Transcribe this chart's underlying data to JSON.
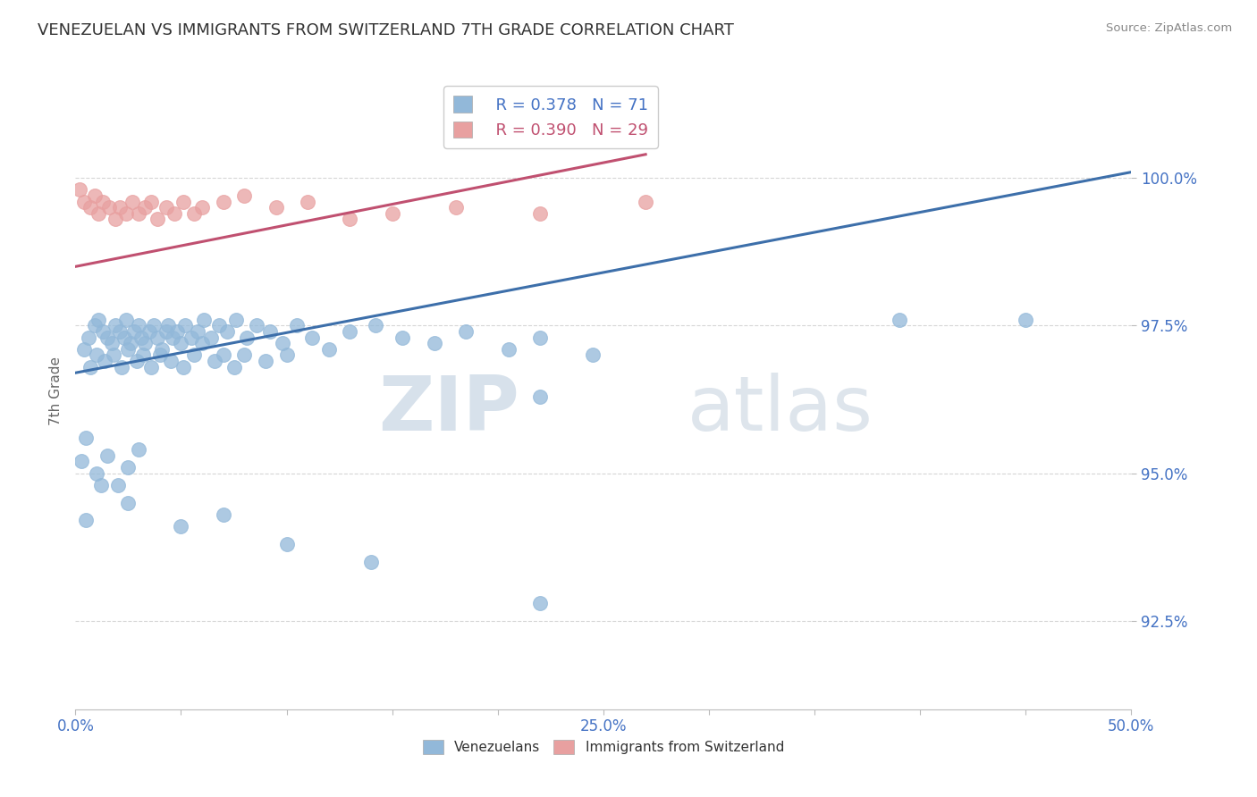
{
  "title": "VENEZUELAN VS IMMIGRANTS FROM SWITZERLAND 7TH GRADE CORRELATION CHART",
  "source": "Source: ZipAtlas.com",
  "ylabel": "7th Grade",
  "xlim": [
    0.0,
    50.0
  ],
  "ylim": [
    91.0,
    101.8
  ],
  "yticks": [
    92.5,
    95.0,
    97.5,
    100.0
  ],
  "ytick_labels": [
    "92.5%",
    "95.0%",
    "97.5%",
    "100.0%"
  ],
  "xticks": [
    0.0,
    5.0,
    10.0,
    15.0,
    20.0,
    25.0,
    30.0,
    35.0,
    40.0,
    45.0,
    50.0
  ],
  "xtick_labels": [
    "0.0%",
    "",
    "",
    "",
    "",
    "25.0%",
    "",
    "",
    "",
    "",
    "50.0%"
  ],
  "blue_r": 0.378,
  "blue_n": 71,
  "pink_r": 0.39,
  "pink_n": 29,
  "blue_color": "#92b8d9",
  "pink_color": "#e8a0a0",
  "blue_line_color": "#3d6faa",
  "pink_line_color": "#c05070",
  "watermark_zip": "ZIP",
  "watermark_atlas": "atlas",
  "blue_scatter_x": [
    0.4,
    0.6,
    0.9,
    1.1,
    1.3,
    1.5,
    1.7,
    1.9,
    2.1,
    2.3,
    2.4,
    2.6,
    2.8,
    3.0,
    3.1,
    3.3,
    3.5,
    3.7,
    3.9,
    4.1,
    4.3,
    4.4,
    4.6,
    4.8,
    5.0,
    5.2,
    5.5,
    5.8,
    6.1,
    6.4,
    6.8,
    7.2,
    7.6,
    8.1,
    8.6,
    9.2,
    9.8,
    10.5,
    11.2,
    12.0,
    13.0,
    14.2,
    15.5,
    17.0,
    18.5,
    20.5,
    22.0,
    24.5,
    0.7,
    1.0,
    1.4,
    1.8,
    2.2,
    2.5,
    2.9,
    3.2,
    3.6,
    4.0,
    4.5,
    5.1,
    5.6,
    6.0,
    6.6,
    7.0,
    7.5,
    8.0,
    9.0,
    10.0,
    22.0,
    39.0,
    45.0
  ],
  "blue_scatter_y": [
    97.1,
    97.3,
    97.5,
    97.6,
    97.4,
    97.3,
    97.2,
    97.5,
    97.4,
    97.3,
    97.6,
    97.2,
    97.4,
    97.5,
    97.3,
    97.2,
    97.4,
    97.5,
    97.3,
    97.1,
    97.4,
    97.5,
    97.3,
    97.4,
    97.2,
    97.5,
    97.3,
    97.4,
    97.6,
    97.3,
    97.5,
    97.4,
    97.6,
    97.3,
    97.5,
    97.4,
    97.2,
    97.5,
    97.3,
    97.1,
    97.4,
    97.5,
    97.3,
    97.2,
    97.4,
    97.1,
    97.3,
    97.0,
    96.8,
    97.0,
    96.9,
    97.0,
    96.8,
    97.1,
    96.9,
    97.0,
    96.8,
    97.0,
    96.9,
    96.8,
    97.0,
    97.2,
    96.9,
    97.0,
    96.8,
    97.0,
    96.9,
    97.0,
    96.3,
    97.6,
    97.6
  ],
  "pink_scatter_x": [
    0.2,
    0.4,
    0.7,
    0.9,
    1.1,
    1.3,
    1.6,
    1.9,
    2.1,
    2.4,
    2.7,
    3.0,
    3.3,
    3.6,
    3.9,
    4.3,
    4.7,
    5.1,
    5.6,
    6.0,
    7.0,
    8.0,
    9.5,
    11.0,
    13.0,
    15.0,
    18.0,
    22.0,
    27.0
  ],
  "pink_scatter_y": [
    99.8,
    99.6,
    99.5,
    99.7,
    99.4,
    99.6,
    99.5,
    99.3,
    99.5,
    99.4,
    99.6,
    99.4,
    99.5,
    99.6,
    99.3,
    99.5,
    99.4,
    99.6,
    99.4,
    99.5,
    99.6,
    99.7,
    99.5,
    99.6,
    99.3,
    99.4,
    99.5,
    99.4,
    99.6
  ],
  "blue_line_x0": 0.0,
  "blue_line_x1": 50.0,
  "blue_line_y0": 96.7,
  "blue_line_y1": 100.1,
  "pink_line_x0": 0.0,
  "pink_line_x1": 27.0,
  "pink_line_y0": 98.5,
  "pink_line_y1": 100.4,
  "extra_blue_x": [
    0.3,
    0.5,
    1.0,
    1.5,
    2.0,
    2.5,
    3.0
  ],
  "extra_blue_y": [
    95.2,
    95.6,
    95.0,
    95.3,
    94.8,
    95.1,
    95.4
  ],
  "low_blue_x": [
    0.5,
    1.2,
    2.5,
    5.0,
    7.0,
    10.0,
    14.0,
    22.0
  ],
  "low_blue_y": [
    94.2,
    94.8,
    94.5,
    94.1,
    94.3,
    93.8,
    93.5,
    92.8
  ]
}
